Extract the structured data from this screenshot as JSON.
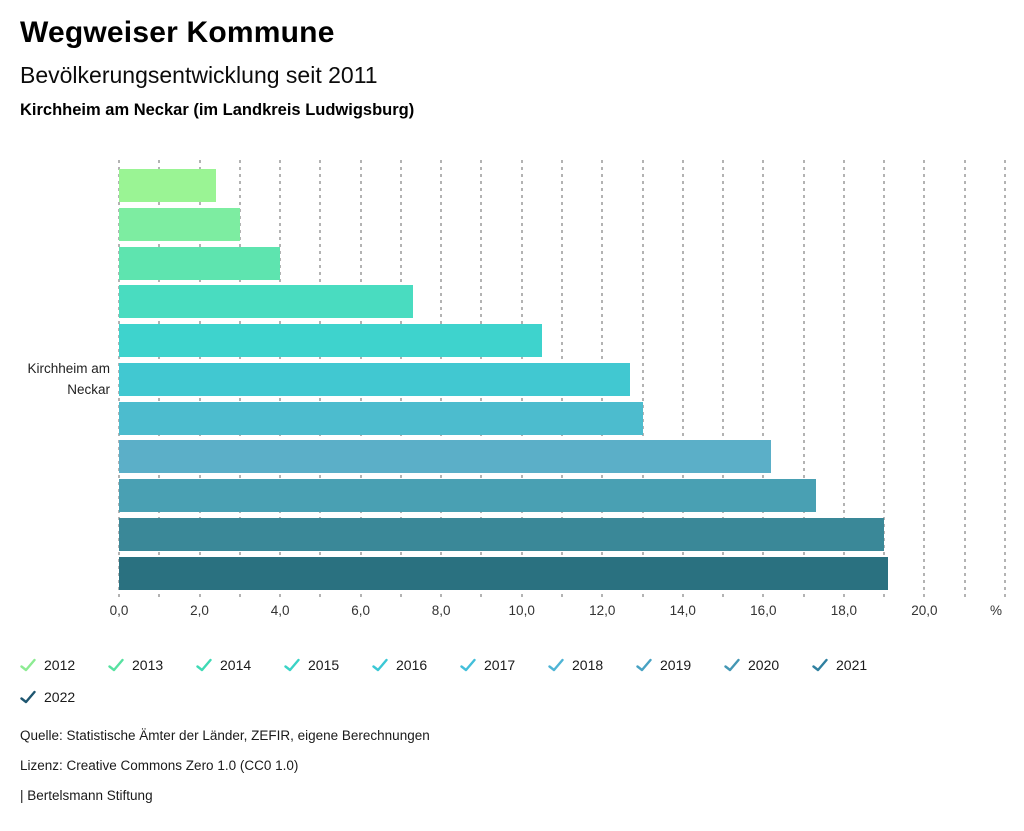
{
  "header": {
    "title": "Wegweiser Kommune",
    "subtitle": "Bevölkerungsentwicklung seit 2011",
    "region": "Kirchheim am Neckar (im Landkreis Ludwigsburg)"
  },
  "chart_data": {
    "type": "bar",
    "orientation": "horizontal",
    "title": "Bevölkerungsentwicklung seit 2011",
    "category": "Kirchheim am Neckar",
    "category_label_lines": [
      "Kirchheim am",
      "Neckar"
    ],
    "unit_label": "%",
    "xlim": [
      0,
      22
    ],
    "x_tick_step": 2,
    "x_grid_step": 1,
    "grid": true,
    "legend_position": "bottom",
    "x_tick_labels": [
      "0,0",
      "2,0",
      "4,0",
      "6,0",
      "8,0",
      "10,0",
      "12,0",
      "14,0",
      "16,0",
      "18,0",
      "20,0"
    ],
    "series": [
      {
        "name": "2012",
        "value": 2.4,
        "bar_color": "#9AF494",
        "check_color": "#8DEB93"
      },
      {
        "name": "2013",
        "value": 3.0,
        "bar_color": "#7DEDA1",
        "check_color": "#57E1A1"
      },
      {
        "name": "2014",
        "value": 4.0,
        "bar_color": "#5EE4AF",
        "check_color": "#3FDAB5"
      },
      {
        "name": "2015",
        "value": 7.3,
        "bar_color": "#49DCC0",
        "check_color": "#3AD3C6"
      },
      {
        "name": "2016",
        "value": 10.5,
        "bar_color": "#3ED3CD",
        "check_color": "#3BC8D5"
      },
      {
        "name": "2017",
        "value": 12.7,
        "bar_color": "#41C8D1",
        "check_color": "#43BFDA"
      },
      {
        "name": "2018",
        "value": 13.0,
        "bar_color": "#4CBCCE",
        "check_color": "#4FB4D5"
      },
      {
        "name": "2019",
        "value": 16.2,
        "bar_color": "#5BAFC8",
        "check_color": "#48A2C3"
      },
      {
        "name": "2020",
        "value": 17.3,
        "bar_color": "#49A0B3",
        "check_color": "#4497B4"
      },
      {
        "name": "2021",
        "value": 19.0,
        "bar_color": "#3A8898",
        "check_color": "#2F80A0"
      },
      {
        "name": "2022",
        "value": 19.1,
        "bar_color": "#2A7180",
        "check_color": "#1E5670"
      }
    ]
  },
  "footer": {
    "source": "Quelle: Statistische Ämter der Länder, ZEFIR, eigene Berechnungen",
    "license": "Lizenz: Creative Commons Zero 1.0 (CC0 1.0)",
    "attribution": "| Bertelsmann Stiftung"
  }
}
